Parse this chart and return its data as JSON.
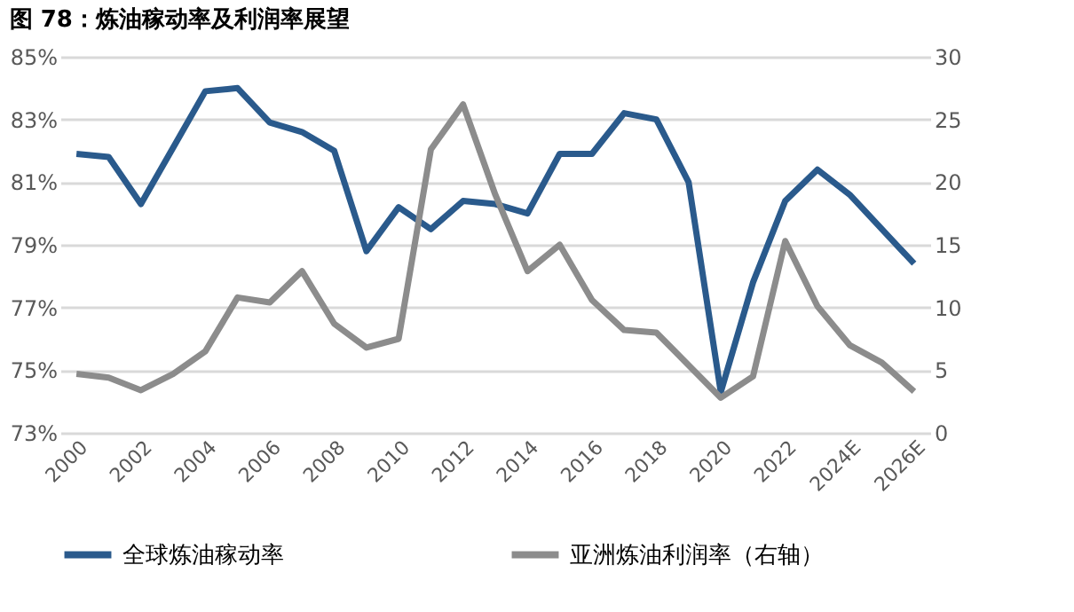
{
  "chart_data": {
    "type": "line",
    "title": "图 78：炼油稼动率及利润率展望",
    "categories": [
      "2000",
      null,
      "2002",
      null,
      "2004",
      null,
      "2006",
      null,
      "2008",
      null,
      "2010",
      null,
      "2012",
      null,
      "2014",
      null,
      "2016",
      null,
      "2018",
      null,
      "2020",
      null,
      "2022",
      null,
      "2024E",
      null,
      "2026E"
    ],
    "series": [
      {
        "name": "全球炼油稼动率",
        "color": "#2a5a8c",
        "values": [
          81.9,
          81.8,
          80.3,
          82.1,
          83.9,
          84.0,
          82.9,
          82.6,
          82.0,
          78.8,
          80.2,
          79.5,
          80.4,
          80.3,
          80.0,
          81.9,
          81.9,
          83.2,
          83.0,
          81.0,
          74.3,
          77.8,
          80.4,
          81.4,
          80.6,
          79.5,
          78.4
        ]
      },
      {
        "name": "亚洲炼油利润率（右轴）",
        "color": "#8c8c8c",
        "axis": "y2",
        "values": [
          4.7,
          4.4,
          3.4,
          4.7,
          6.5,
          10.8,
          10.4,
          12.9,
          8.7,
          6.8,
          7.5,
          22.6,
          26.2,
          19.0,
          12.9,
          15.0,
          10.6,
          8.2,
          8.0,
          5.4,
          2.8,
          4.5,
          15.3,
          10.1,
          7.0,
          5.6,
          3.3
        ]
      }
    ],
    "ylim": [
      73,
      85
    ],
    "yticks": [
      {
        "value": 73,
        "label": "73%"
      },
      {
        "value": 75,
        "label": "75%"
      },
      {
        "value": 77,
        "label": "77%"
      },
      {
        "value": 79,
        "label": "79%"
      },
      {
        "value": 81,
        "label": "81%"
      },
      {
        "value": 83,
        "label": "83%"
      },
      {
        "value": 85,
        "label": "85%"
      }
    ],
    "y2lim": [
      0,
      30
    ],
    "y2ticks": [
      0,
      5,
      10,
      15,
      20,
      25,
      30
    ],
    "grid": "y",
    "legend": "bottom"
  }
}
